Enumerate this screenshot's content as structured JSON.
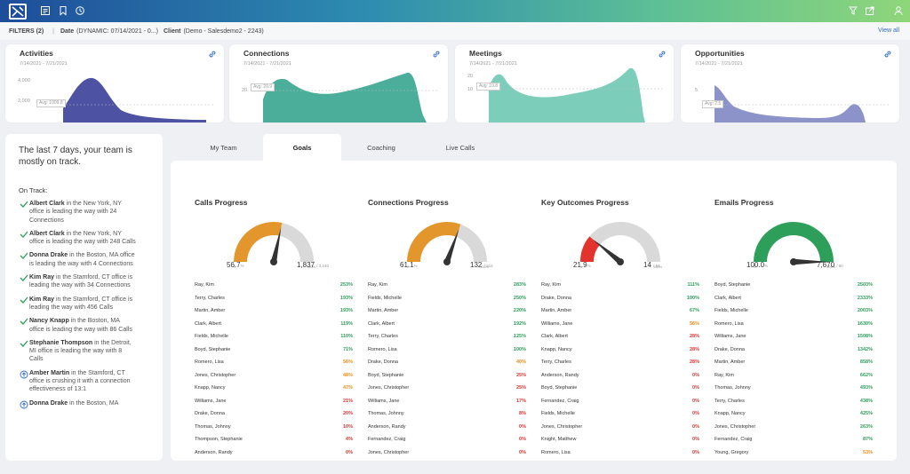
{
  "filters": {
    "count_label": "FILTERS (2)",
    "date_label": "Date",
    "date_value": "(DYNAMIC: 07/14/2021 - 0...)",
    "client_label": "Client",
    "client_value": "(Demo - Salesdemo2 - 2243)",
    "view_all": "View all"
  },
  "cards": [
    {
      "title": "Activities",
      "range": "7/14/2021 - 7/21/2021",
      "y_labels": [
        "4,000",
        "2,000"
      ],
      "avg_label": "Avg: 1009.8",
      "color": "#4d52a3"
    },
    {
      "title": "Connections",
      "range": "7/14/2021 - 7/21/2021",
      "y_labels": [
        "20"
      ],
      "avg_label": "Avg: 20.9",
      "color": "#4aae9b"
    },
    {
      "title": "Meetings",
      "range": "7/14/2021 - 7/21/2021",
      "y_labels": [
        "20",
        "10"
      ],
      "avg_label": "Avg: 10.8",
      "color": "#7dcdbb"
    },
    {
      "title": "Opportunities",
      "range": "7/14/2021 - 7/21/2021",
      "y_labels": [
        "5"
      ],
      "avg_label": "Avg: 2.5",
      "color": "#8b93c9"
    }
  ],
  "panel": {
    "headline": "The last 7 days, your team is mostly on track.",
    "on_track_label": "On Track:",
    "insights": [
      {
        "icon": "check",
        "name": "Albert Clark",
        "text": " in the New York, NY office is leading the way with 24 Connections"
      },
      {
        "icon": "check",
        "name": "Albert Clark",
        "text": " in the New York, NY office is leading the way with 248 Calls"
      },
      {
        "icon": "check",
        "name": "Donna Drake",
        "text": " in the Boston, MA office is leading the way with 4 Connections"
      },
      {
        "icon": "check",
        "name": "Kim Ray",
        "text": " in the Stamford, CT office is leading the way with 34 Connections"
      },
      {
        "icon": "check",
        "name": "Kim Ray",
        "text": " in the Stamford, CT office is leading the way with 456 Calls"
      },
      {
        "icon": "check",
        "name": "Nancy Knapp",
        "text": " in the Boston, MA office is leading the way with 86 Calls"
      },
      {
        "icon": "check",
        "name": "Stephanie Thompson",
        "text": " in the Detroit, MI office is leading the way with 8 Calls"
      },
      {
        "icon": "up",
        "name": "Amber Martin",
        "text": " in the Stamford, CT office is crushing it with a connection effectiveness of 13:1"
      },
      {
        "icon": "up",
        "name": "Donna Drake",
        "text": " in the Boston, MA"
      }
    ]
  },
  "tabs": [
    "My Team",
    "Goals",
    "Coaching",
    "Live Calls"
  ],
  "active_tab": "Goals",
  "colors": {
    "green": "#2e9e5b",
    "orange": "#f08c1a",
    "red": "#e2332f"
  },
  "goals": [
    {
      "title": "Calls Progress",
      "pct_label": "56.7",
      "pct_unit": "%",
      "value": "1,837",
      "target": "/ 3,240",
      "zero": "0",
      "hundred": "100%",
      "fraction": 0.567,
      "color": "#e2962c",
      "rows": [
        [
          "Ray, Kim",
          "253%"
        ],
        [
          "Terry, Charles",
          "193%"
        ],
        [
          "Martin, Amber",
          "193%"
        ],
        [
          "Clark, Albert",
          "119%"
        ],
        [
          "Fields, Michelle",
          "110%"
        ],
        [
          "Boyd, Stephanie",
          "71%"
        ],
        [
          "Romero, Lisa",
          "56%"
        ],
        [
          "Jones, Christopher",
          "48%"
        ],
        [
          "Knapp, Nancy",
          "47%"
        ],
        [
          "Williams, Jane",
          "21%"
        ],
        [
          "Drake, Donna",
          "20%"
        ],
        [
          "Thomas, Johnny",
          "10%"
        ],
        [
          "Thompson, Stephanie",
          "4%"
        ],
        [
          "Anderson, Randy",
          "0%"
        ]
      ]
    },
    {
      "title": "Connections Progress",
      "pct_label": "61.1",
      "pct_unit": "%",
      "value": "132",
      "target": "/ 216",
      "zero": "0",
      "hundred": "100%",
      "fraction": 0.611,
      "color": "#e2962c",
      "rows": [
        [
          "Ray, Kim",
          "283%"
        ],
        [
          "Fields, Michelle",
          "250%"
        ],
        [
          "Martin, Amber",
          "220%"
        ],
        [
          "Clark, Albert",
          "192%"
        ],
        [
          "Terry, Charles",
          "125%"
        ],
        [
          "Romero, Lisa",
          "100%"
        ],
        [
          "Drake, Donna",
          "40%"
        ],
        [
          "Boyd, Stephanie",
          "25%"
        ],
        [
          "Jones, Christopher",
          "25%"
        ],
        [
          "Williams, Jane",
          "17%"
        ],
        [
          "Thomas, Johnny",
          "8%"
        ],
        [
          "Anderson, Randy",
          "0%"
        ],
        [
          "Fernandez, Craig",
          "0%"
        ],
        [
          "Jones, Christopher",
          "0%"
        ]
      ]
    },
    {
      "title": "Key Outcomes Progress",
      "pct_label": "21.9",
      "pct_unit": "%",
      "value": "14",
      "target": "/ 64",
      "zero": "0",
      "hundred": "100%",
      "fraction": 0.219,
      "color": "#e2332f",
      "rows": [
        [
          "Ray, Kim",
          "111%"
        ],
        [
          "Drake, Donna",
          "100%"
        ],
        [
          "Martin, Amber",
          "67%"
        ],
        [
          "Williams, Jane",
          "56%"
        ],
        [
          "Clark, Albert",
          "28%"
        ],
        [
          "Knapp, Nancy",
          "28%"
        ],
        [
          "Terry, Charles",
          "28%"
        ],
        [
          "Anderson, Randy",
          "0%"
        ],
        [
          "Boyd, Stephanie",
          "0%"
        ],
        [
          "Fernandez, Craig",
          "0%"
        ],
        [
          "Fields, Michelle",
          "0%"
        ],
        [
          "Jones, Christopher",
          "0%"
        ],
        [
          "Knight, Matthew",
          "0%"
        ],
        [
          "Romero, Lisa",
          "0%"
        ]
      ]
    },
    {
      "title": "Emails Progress",
      "pct_label": "100.0",
      "pct_unit": "%",
      "value": "7,670",
      "target": "/ 60",
      "zero": "0",
      "hundred": "100%",
      "fraction": 1.0,
      "color": "#2e9e5b",
      "rows": [
        [
          "Boyd, Stephanie",
          "2503%"
        ],
        [
          "Clark, Albert",
          "2333%"
        ],
        [
          "Fields, Michelle",
          "2003%"
        ],
        [
          "Romero, Lisa",
          "1630%"
        ],
        [
          "Williams, Jane",
          "1508%"
        ],
        [
          "Drake, Donna",
          "1342%"
        ],
        [
          "Martin, Amber",
          "858%"
        ],
        [
          "Ray, Kim",
          "662%"
        ],
        [
          "Thomas, Johnny",
          "493%"
        ],
        [
          "Terry, Charles",
          "438%"
        ],
        [
          "Knapp, Nancy",
          "425%"
        ],
        [
          "Jones, Christopher",
          "263%"
        ],
        [
          "Fernandez, Craig",
          "87%"
        ],
        [
          "Young, Gregory",
          "53%"
        ]
      ]
    }
  ]
}
